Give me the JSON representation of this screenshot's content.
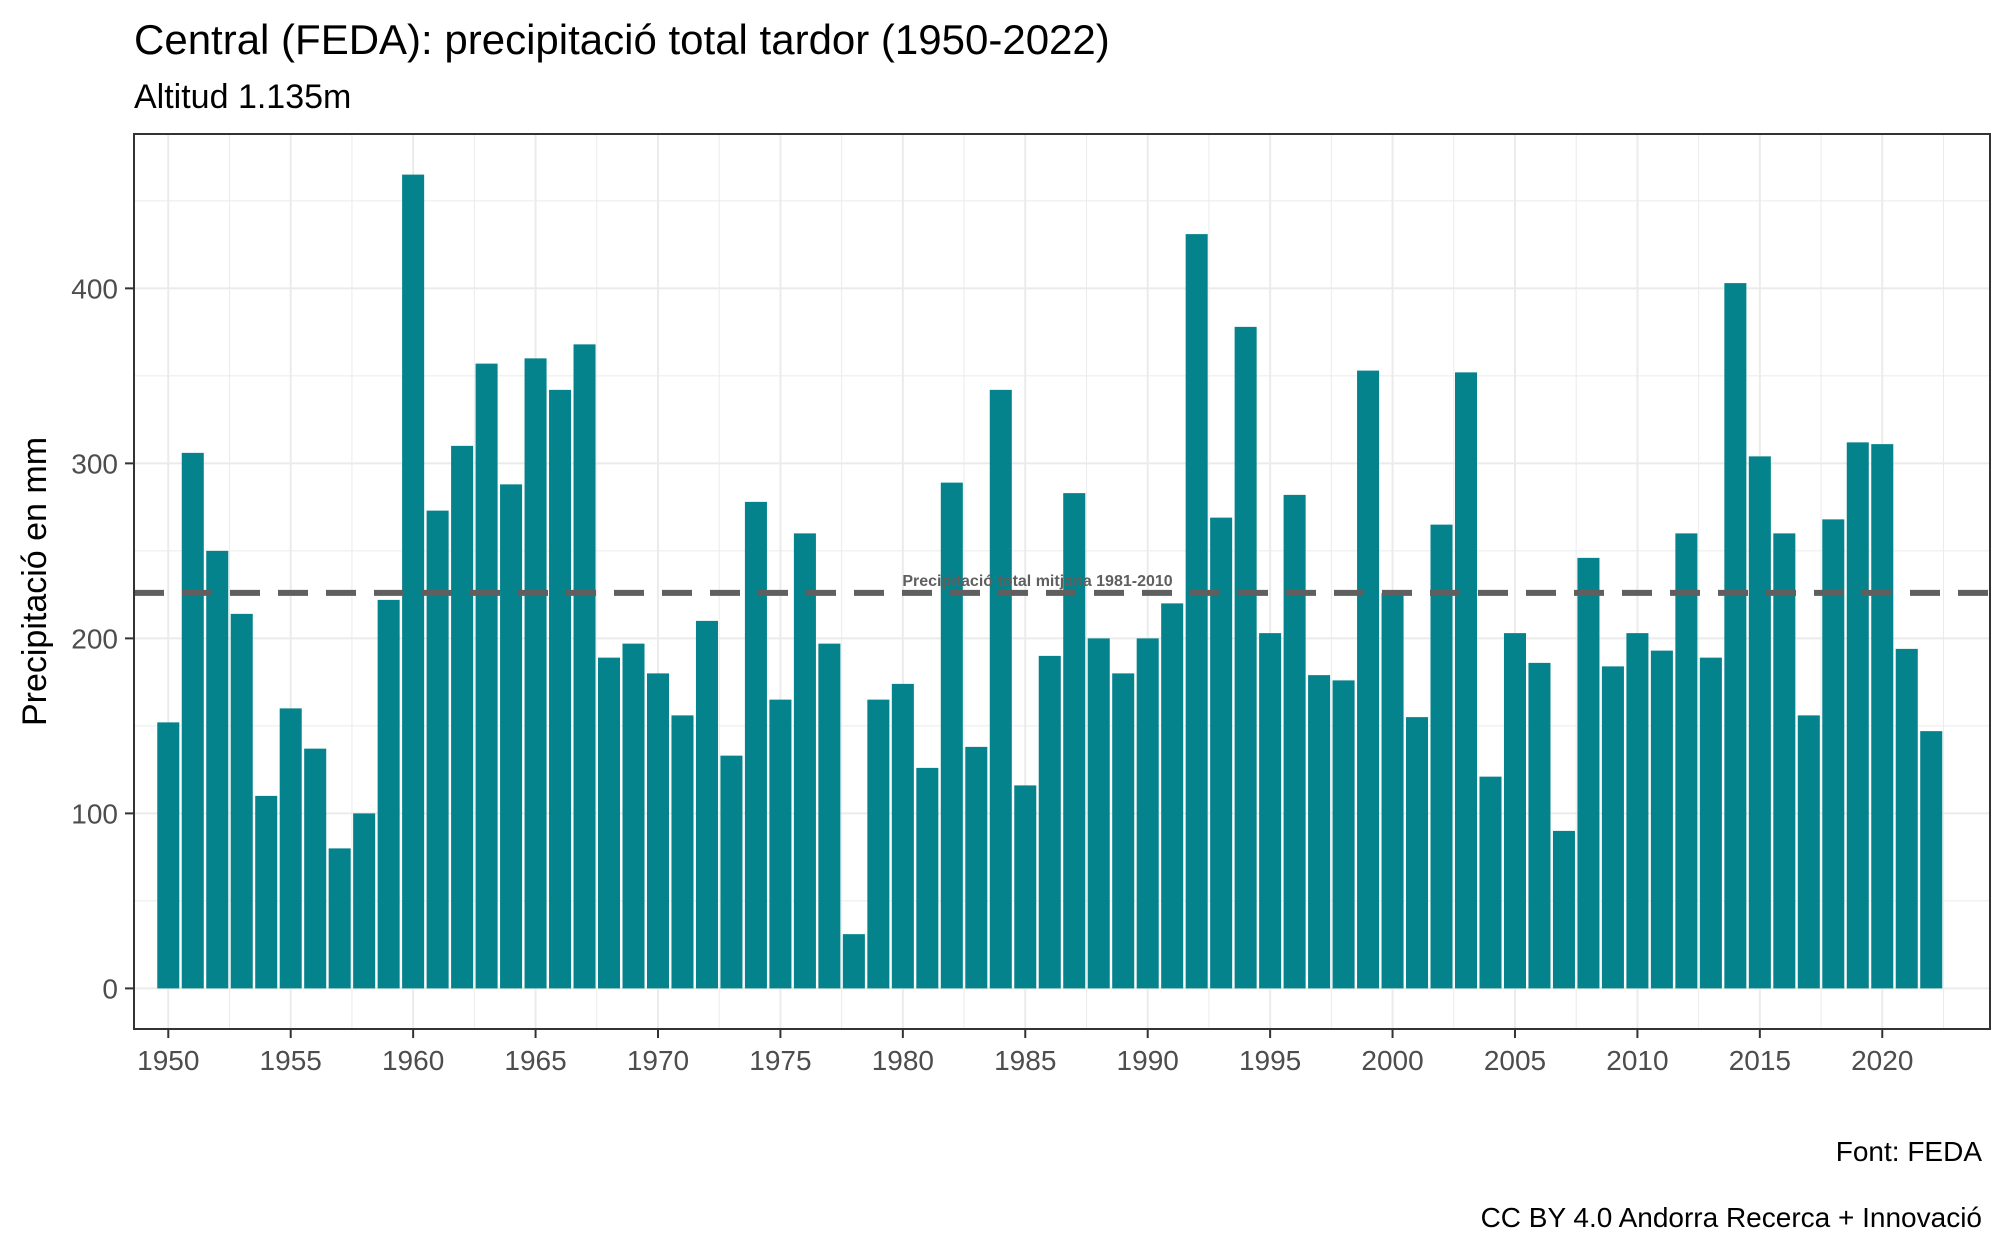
{
  "title": "Central (FEDA): precipitació total tardor (1950-2022)",
  "subtitle": "Altitud 1.135m",
  "caption": [
    "Font: FEDA",
    "CC BY 4.0 Andorra Recerca + Innovació"
  ],
  "colors": {
    "bar": "#05838C",
    "reference_line": "#5F5F5F",
    "grid": "#EBEBEB",
    "panel_border": "#333333"
  },
  "chart_data": {
    "type": "bar",
    "title": "Central (FEDA): precipitació total tardor (1950-2022)",
    "subtitle": "Altitud 1.135m",
    "xlabel": "",
    "ylabel": "Precipitació en mm",
    "x": [
      1950,
      1951,
      1952,
      1953,
      1954,
      1955,
      1956,
      1957,
      1958,
      1959,
      1960,
      1961,
      1962,
      1963,
      1964,
      1965,
      1966,
      1967,
      1968,
      1969,
      1970,
      1971,
      1972,
      1973,
      1974,
      1975,
      1976,
      1977,
      1978,
      1979,
      1980,
      1981,
      1982,
      1983,
      1984,
      1985,
      1986,
      1987,
      1988,
      1989,
      1990,
      1991,
      1992,
      1993,
      1994,
      1995,
      1996,
      1997,
      1998,
      1999,
      2000,
      2001,
      2002,
      2003,
      2004,
      2005,
      2006,
      2007,
      2008,
      2009,
      2010,
      2011,
      2012,
      2013,
      2014,
      2015,
      2016,
      2017,
      2018,
      2019,
      2020,
      2021,
      2022
    ],
    "values": [
      152,
      306,
      250,
      214,
      110,
      160,
      137,
      80,
      100,
      222,
      465,
      273,
      310,
      357,
      288,
      360,
      342,
      368,
      189,
      197,
      180,
      156,
      210,
      133,
      278,
      165,
      260,
      197,
      31,
      165,
      174,
      126,
      289,
      138,
      342,
      116,
      190,
      283,
      200,
      180,
      200,
      220,
      431,
      269,
      378,
      203,
      282,
      179,
      176,
      353,
      226,
      155,
      265,
      352,
      121,
      203,
      186,
      90,
      246,
      184,
      203,
      193,
      260,
      189,
      403,
      304,
      260,
      156,
      268,
      312,
      311,
      194,
      147
    ],
    "x_ticks": [
      1950,
      1955,
      1960,
      1965,
      1970,
      1975,
      1980,
      1985,
      1990,
      1995,
      2000,
      2005,
      2010,
      2015,
      2020
    ],
    "y_ticks": [
      0,
      100,
      200,
      300,
      400
    ],
    "xlim": [
      1948.6,
      2024.4
    ],
    "ylim": [
      -23.2,
      488.2
    ],
    "reference_line": {
      "value": 226,
      "label": "Precipitació total mitjana 1981-2010",
      "style": "dashed",
      "label_position_x": 1985.5
    },
    "grid": true,
    "legend": "none"
  }
}
